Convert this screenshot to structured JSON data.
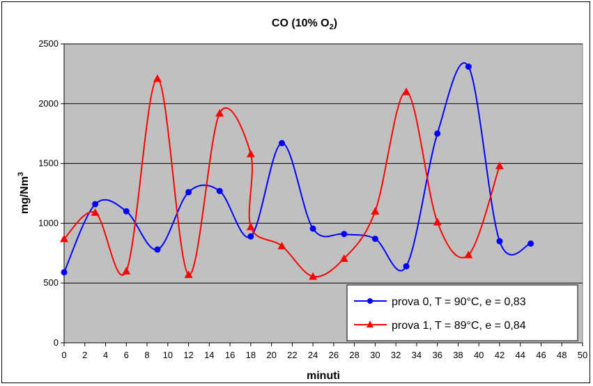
{
  "chart_data": {
    "type": "line",
    "title_main": "CO (10% O",
    "title_sub": "2",
    "title_end": ")",
    "xlabel": "minuti",
    "ylabel_main": "mg/Nm",
    "ylabel_sup": "3",
    "xlim": [
      0,
      50
    ],
    "ylim": [
      0,
      2500
    ],
    "xticks": [
      "0",
      "2",
      "4",
      "6",
      "8",
      "10",
      "12",
      "14",
      "16",
      "18",
      "20",
      "22",
      "24",
      "26",
      "28",
      "30",
      "32",
      "34",
      "36",
      "38",
      "40",
      "42",
      "44",
      "46",
      "48",
      "50"
    ],
    "yticks": [
      "0",
      "500",
      "1000",
      "1500",
      "2000",
      "2500"
    ],
    "grid": "horizontal",
    "legend_position": "bottom-right",
    "plot_background": "#c0c0c0",
    "series": [
      {
        "name": "prova 0, T = 90°C, e = 0,83",
        "color": "#0000ff",
        "marker": "circle",
        "x": [
          0,
          3,
          6,
          9,
          12,
          15,
          18,
          21,
          24,
          27,
          30,
          33,
          36,
          39,
          42,
          45
        ],
        "y": [
          590,
          1160,
          1100,
          780,
          1260,
          1270,
          890,
          1670,
          955,
          910,
          870,
          640,
          1750,
          2310,
          850,
          830
        ]
      },
      {
        "name": "prova 1, T = 89°C, e = 0,84",
        "color": "#ff0000",
        "marker": "triangle",
        "x": [
          0,
          3,
          6,
          9,
          12,
          15,
          18,
          18,
          21,
          24,
          27,
          30,
          33,
          36,
          39,
          42
        ],
        "y": [
          870,
          1090,
          600,
          2210,
          570,
          1920,
          1580,
          970,
          810,
          555,
          705,
          1100,
          2100,
          1010,
          735,
          1480
        ]
      }
    ]
  }
}
